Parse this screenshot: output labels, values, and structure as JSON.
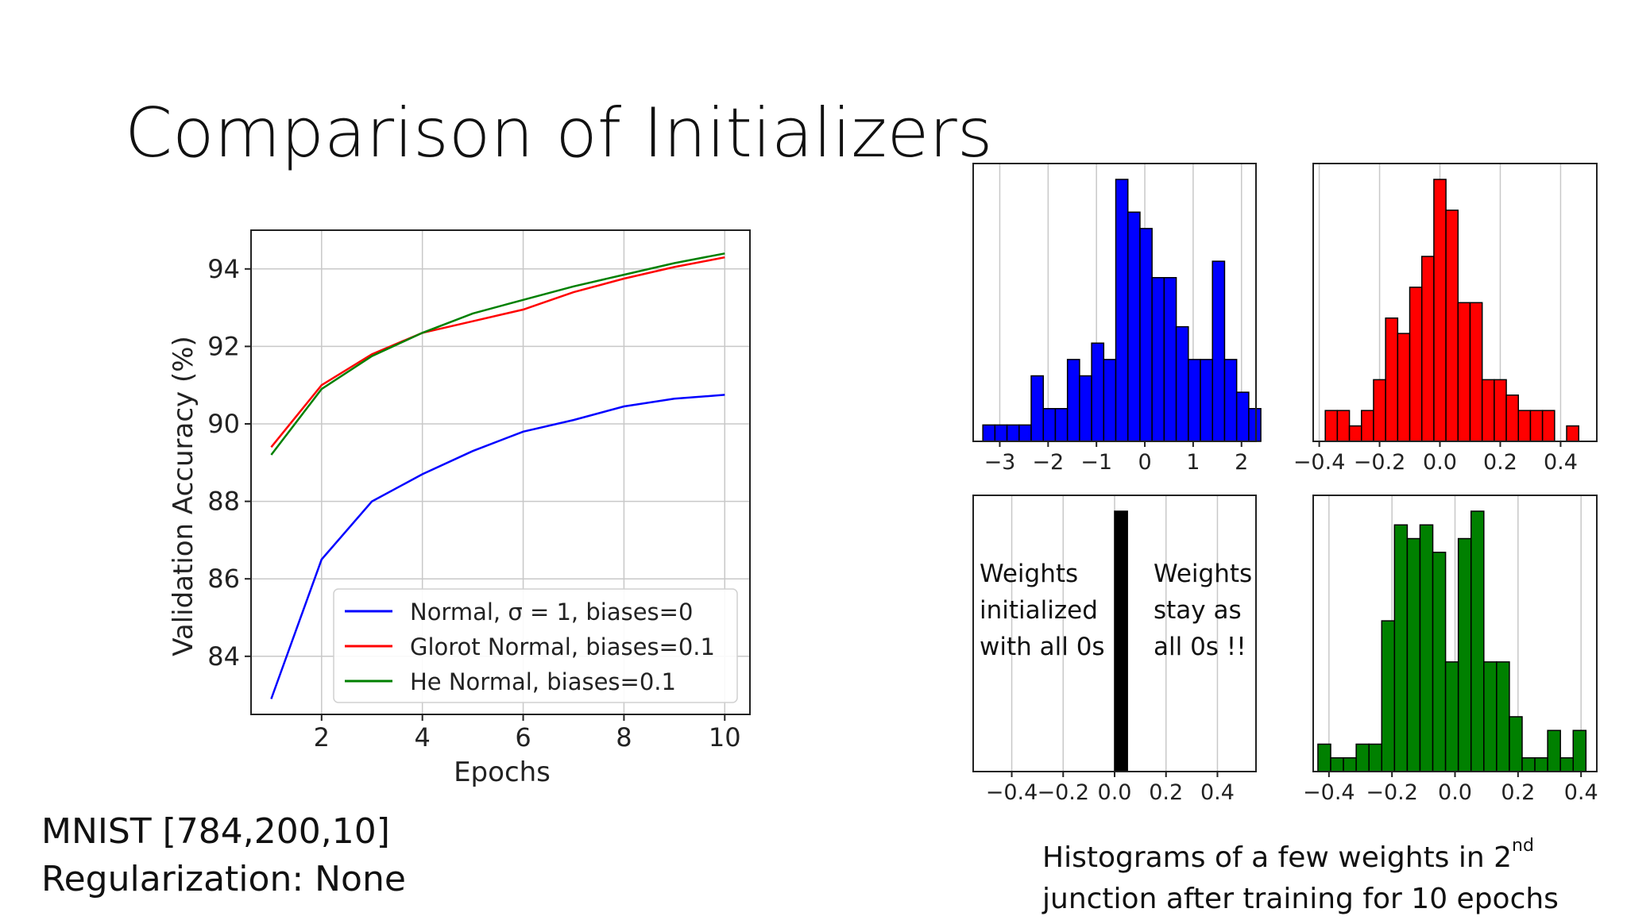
{
  "slide": {
    "title": "Comparison of Initializers",
    "network_line": "MNIST [784,200,10]",
    "regularization_line": "Regularization: None",
    "caption_part1": "Histograms of a few weights in 2",
    "caption_sup": "nd",
    "caption_line2": "junction after training for 10 epochs",
    "zeros_left": [
      "Weights",
      "initialized",
      "with all 0s"
    ],
    "zeros_right": [
      "Weights",
      "stay as",
      "all 0s !!"
    ]
  },
  "chart_data": [
    {
      "type": "line",
      "title": "",
      "xlabel": "Epochs",
      "ylabel": "Validation Accuracy (%)",
      "x": [
        1,
        2,
        3,
        4,
        5,
        6,
        7,
        8,
        9,
        10
      ],
      "xlim": [
        0.6,
        10.5
      ],
      "ylim": [
        82.5,
        95
      ],
      "xticks": [
        2,
        4,
        6,
        8,
        10
      ],
      "yticks": [
        84,
        86,
        88,
        90,
        92,
        94
      ],
      "grid": true,
      "legend_position": "lower-right",
      "series": [
        {
          "name": "Normal, σ = 1, biases=0",
          "color": "#0000ff",
          "values": [
            82.9,
            86.5,
            88.0,
            88.7,
            89.3,
            89.8,
            90.1,
            90.45,
            90.65,
            90.75
          ]
        },
        {
          "name": "Glorot Normal, biases=0.1",
          "color": "#ff0000",
          "values": [
            89.4,
            91.0,
            91.8,
            92.35,
            92.65,
            92.95,
            93.4,
            93.75,
            94.05,
            94.3
          ]
        },
        {
          "name": "He Normal, biases=0.1",
          "color": "#008000",
          "values": [
            89.2,
            90.9,
            91.75,
            92.35,
            92.85,
            93.2,
            93.55,
            93.85,
            94.15,
            94.4
          ]
        }
      ]
    },
    {
      "type": "bar",
      "subtype": "histogram",
      "color": "#0000ff",
      "xlim": [
        -3.55,
        2.3
      ],
      "xticks": [
        -3,
        -2,
        -1,
        0,
        1,
        2
      ],
      "xtick_labels": [
        "−3",
        "−2",
        "−1",
        "0",
        "1",
        "2"
      ],
      "bin_start": -3.35,
      "bin_width": 0.25,
      "counts": [
        1,
        1,
        1,
        1,
        4,
        2,
        2,
        5,
        4,
        6,
        5,
        16,
        14,
        13,
        10,
        10,
        7,
        5,
        5,
        11,
        5,
        3,
        2
      ]
    },
    {
      "type": "bar",
      "subtype": "histogram",
      "color": "#ff0000",
      "xlim": [
        -0.42,
        0.52
      ],
      "xticks": [
        -0.4,
        -0.2,
        0.0,
        0.2,
        0.4
      ],
      "xtick_labels": [
        "−0.4",
        "−0.2",
        "0.0",
        "0.2",
        "0.4"
      ],
      "bin_start": -0.38,
      "bin_width": 0.04,
      "counts": [
        2,
        2,
        1,
        2,
        4,
        8,
        7,
        10,
        12,
        17,
        15,
        9,
        9,
        4,
        4,
        3,
        2,
        2,
        2,
        0,
        1
      ]
    },
    {
      "type": "bar",
      "subtype": "histogram",
      "color": "#000000",
      "xlim": [
        -0.55,
        0.55
      ],
      "xticks": [
        -0.4,
        -0.2,
        0.0,
        0.2,
        0.4
      ],
      "xtick_labels": [
        "−0.4",
        "−0.2",
        "0.0",
        "0.2",
        "0.4"
      ],
      "bin_start": 0.0,
      "bin_width": 0.05,
      "counts": [
        1
      ]
    },
    {
      "type": "bar",
      "subtype": "histogram",
      "color": "#008000",
      "xlim": [
        -0.45,
        0.45
      ],
      "xticks": [
        -0.4,
        -0.2,
        0.0,
        0.2,
        0.4
      ],
      "xtick_labels": [
        "−0.4",
        "−0.2",
        "0.0",
        "0.2",
        "0.4"
      ],
      "bin_start": -0.435,
      "bin_width": 0.0405,
      "counts": [
        2,
        1,
        1,
        2,
        2,
        11,
        18,
        17,
        18,
        16,
        8,
        17,
        19,
        8,
        8,
        4,
        1,
        1,
        3,
        1,
        3
      ]
    }
  ]
}
